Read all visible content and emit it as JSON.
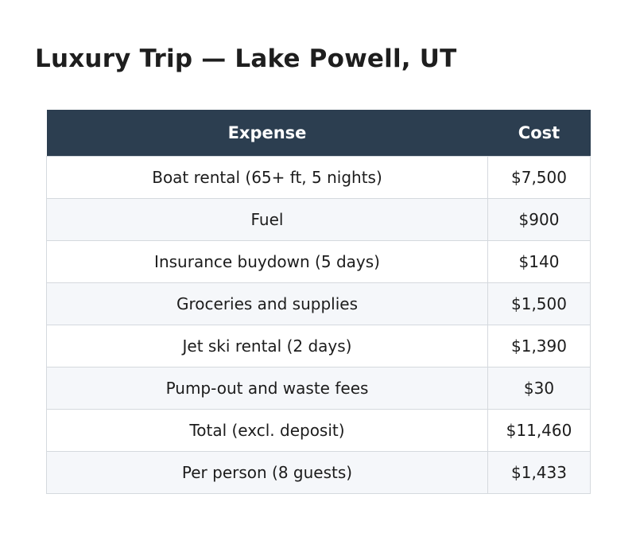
{
  "title": "Luxury Trip — Lake Powell, UT",
  "chart_data": {
    "type": "table",
    "columns": [
      "Expense",
      "Cost"
    ],
    "rows": [
      [
        "Boat rental (65+ ft, 5 nights)",
        "$7,500"
      ],
      [
        "Fuel",
        "$900"
      ],
      [
        "Insurance buydown (5 days)",
        "$140"
      ],
      [
        "Groceries and supplies",
        "$1,500"
      ],
      [
        "Jet ski rental (2 days)",
        "$1,390"
      ],
      [
        "Pump-out and waste fees",
        "$30"
      ],
      [
        "Total (excl. deposit)",
        "$11,460"
      ],
      [
        "Per person (8 guests)",
        "$1,433"
      ]
    ],
    "colors": {
      "header_bg": "#2c3e50",
      "header_text": "#ffffff",
      "stripe": "#f5f7fa",
      "border": "#d5d9de"
    }
  }
}
